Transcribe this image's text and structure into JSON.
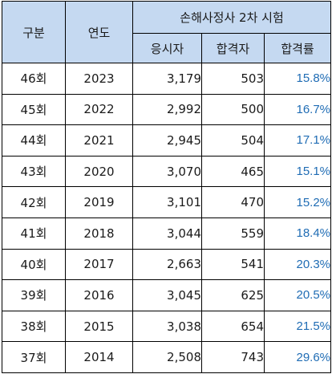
{
  "header": {
    "col_gubun": "구분",
    "col_year": "연도",
    "group_title": "손해사정사 2차 시험",
    "col_applicants": "응시자",
    "col_passers": "합격자",
    "col_rate": "합격률"
  },
  "rows": [
    {
      "round": "46회",
      "year": "2023",
      "applicants": "3,179",
      "passers": "503",
      "rate": "15.8%"
    },
    {
      "round": "45회",
      "year": "2022",
      "applicants": "2,992",
      "passers": "500",
      "rate": "16.7%"
    },
    {
      "round": "44회",
      "year": "2021",
      "applicants": "2,945",
      "passers": "504",
      "rate": "17.1%"
    },
    {
      "round": "43회",
      "year": "2020",
      "applicants": "3,070",
      "passers": "465",
      "rate": "15.1%"
    },
    {
      "round": "42회",
      "year": "2019",
      "applicants": "3,101",
      "passers": "470",
      "rate": "15.2%"
    },
    {
      "round": "41회",
      "year": "2018",
      "applicants": "3,044",
      "passers": "559",
      "rate": "18.4%"
    },
    {
      "round": "40회",
      "year": "2017",
      "applicants": "2,663",
      "passers": "541",
      "rate": "20.3%"
    },
    {
      "round": "39회",
      "year": "2016",
      "applicants": "3,045",
      "passers": "625",
      "rate": "20.5%"
    },
    {
      "round": "38회",
      "year": "2015",
      "applicants": "3,038",
      "passers": "654",
      "rate": "21.5%"
    },
    {
      "round": "37회",
      "year": "2014",
      "applicants": "2,508",
      "passers": "743",
      "rate": "29.6%"
    }
  ],
  "colors": {
    "header_bg": "#c5d9f1",
    "rate_text": "#1f6cb4",
    "border": "#000000"
  }
}
